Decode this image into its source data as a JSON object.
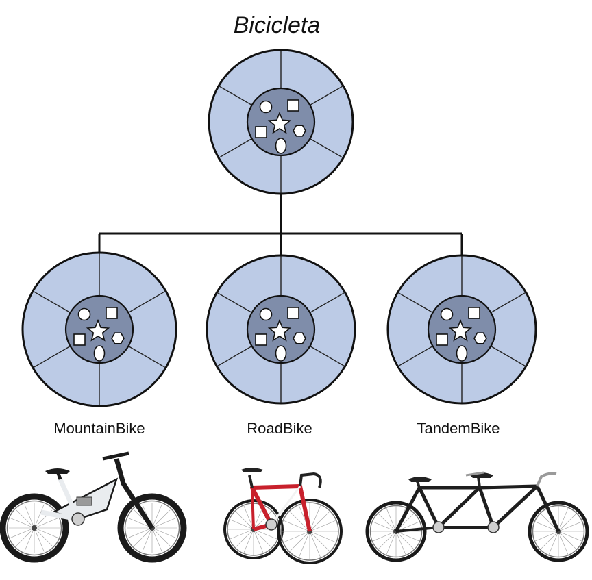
{
  "diagram": {
    "title": "Bicicleta",
    "root": {
      "name": "Bicicleta"
    },
    "children": [
      {
        "label": "MountainBike",
        "photo": "mountain-bike-photo",
        "frame_color": "#e9ecef",
        "accent": "#1b1b1b"
      },
      {
        "label": "RoadBike",
        "photo": "road-bike-photo",
        "frame_color": "#c8202c",
        "accent": "#f2f2f2"
      },
      {
        "label": "TandemBike",
        "photo": "tandem-bike-photo",
        "frame_color": "#1e1e1e",
        "accent": "#9a9a9a"
      }
    ],
    "object_symbols": [
      "circle-icon",
      "square-icon",
      "star-icon",
      "square-icon",
      "hexagon-icon",
      "ellipse-icon"
    ],
    "colors": {
      "ring": "#bccbe6",
      "hub": "#7f8daa",
      "outline": "#111111"
    }
  }
}
